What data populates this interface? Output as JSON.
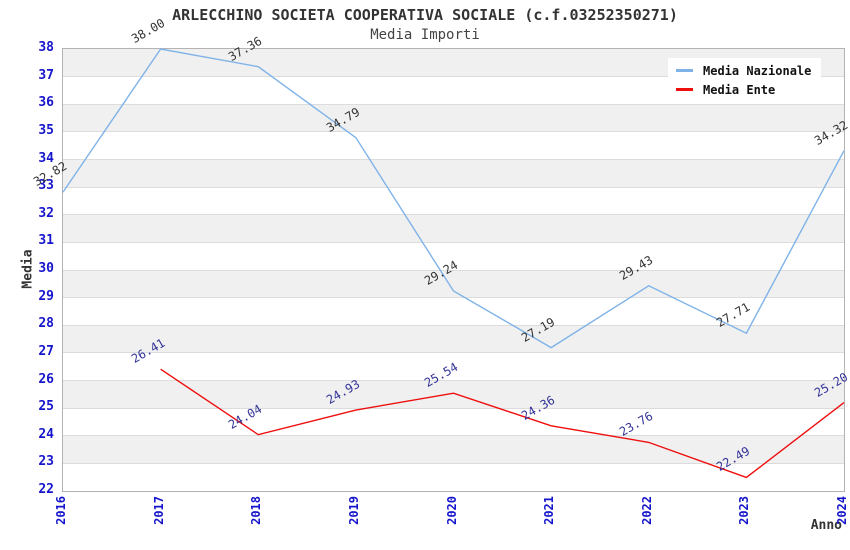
{
  "header": {
    "title": "ARLECCHINO SOCIETA COOPERATIVA SOCIALE (c.f.03252350271)",
    "subtitle": "Media Importi"
  },
  "chart_data": {
    "type": "line",
    "x": [
      2016,
      2017,
      2018,
      2019,
      2020,
      2021,
      2022,
      2023,
      2024
    ],
    "xlabel": "Anno",
    "ylabel": "Media",
    "ylim": [
      22,
      38
    ],
    "y_tick_step": 1,
    "grid": "horizontal-alternating-bands",
    "legend_position": "top-right-inside",
    "series": [
      {
        "name": "Media Nazionale",
        "color": "#7fb3e8",
        "label_color": "#333333",
        "values": [
          32.82,
          38.0,
          37.36,
          34.79,
          29.24,
          27.19,
          29.43,
          27.71,
          34.32
        ]
      },
      {
        "name": "Media Ente",
        "color": "#ee0e0e",
        "label_color": "#333399",
        "values": [
          null,
          26.41,
          24.04,
          24.93,
          25.54,
          24.36,
          23.76,
          22.49,
          25.2
        ]
      }
    ]
  },
  "colors": {
    "band_gray": "#f0f0f0",
    "band_white": "#ffffff",
    "gridline": "#dcdcdc",
    "plot_border": "#b3b3b3",
    "axis_tick_text": "#1515cc",
    "title_text": "#333333"
  }
}
